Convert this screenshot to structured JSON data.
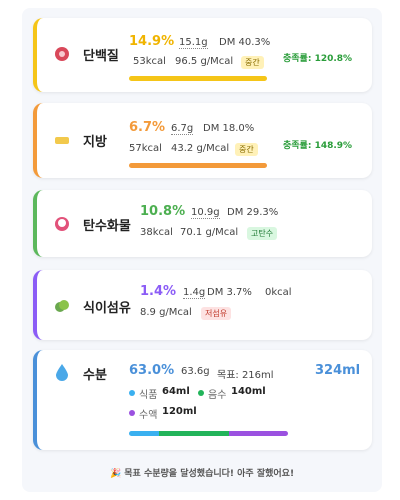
{
  "cards": [
    {
      "name": "단백질",
      "percent": "14.9%",
      "grams": "15.1g",
      "dm": "DM 40.3%",
      "kcal": "53kcal",
      "density": "96.5 g/Mcal",
      "badge": "중간",
      "coverage": "충족률: 120.8%"
    },
    {
      "name": "지방",
      "percent": "6.7%",
      "grams": "6.7g",
      "dm": "DM 18.0%",
      "kcal": "57kcal",
      "density": "43.2 g/Mcal",
      "badge": "중간",
      "coverage": "충족률: 148.9%"
    },
    {
      "name": "탄수화물",
      "percent": "10.8%",
      "grams": "10.9g",
      "dm": "DM 29.3%",
      "kcal": "38kcal",
      "density": "70.1 g/Mcal",
      "badge": "고탄수"
    },
    {
      "name": "식이섬유",
      "percent": "1.4%",
      "grams": "1.4g",
      "dm": "DM 3.7%",
      "kcal": "0kcal",
      "density": "8.9 g/Mcal",
      "badge": "저섬유"
    }
  ],
  "water": {
    "name": "수분",
    "percent": "63.0%",
    "grams": "63.6g",
    "target": "목표: 216ml",
    "total": "324ml",
    "sources": [
      {
        "label": "식품",
        "amount": "64ml"
      },
      {
        "label": "음수",
        "amount": "140ml"
      },
      {
        "label": "수액",
        "amount": "120ml"
      }
    ]
  },
  "footer": "🎉 목표 수분량을 달성했습니다! 아주 잘했어요!"
}
